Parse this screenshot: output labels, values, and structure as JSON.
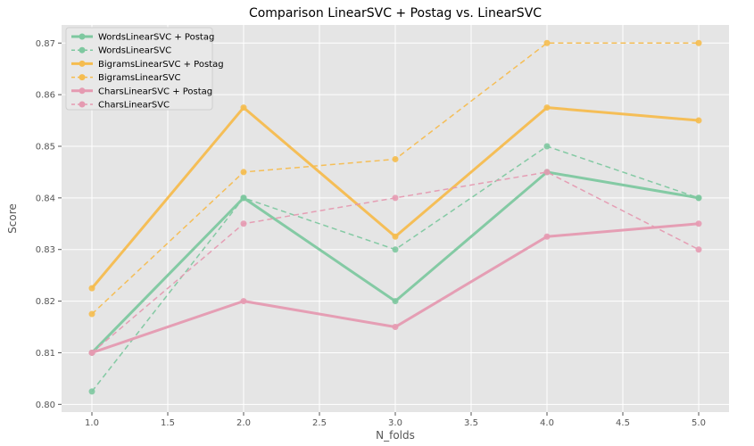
{
  "chart_data": {
    "type": "line",
    "title": "Comparison LinearSVC + Postag vs. LinearSVC",
    "xlabel": "N_folds",
    "ylabel": "Score",
    "x": [
      1.0,
      2.0,
      3.0,
      4.0,
      5.0
    ],
    "xlim": [
      0.8,
      5.2
    ],
    "ylim": [
      0.7985,
      0.8735
    ],
    "xticks": [
      "1.0",
      "1.5",
      "2.0",
      "2.5",
      "3.0",
      "3.5",
      "4.0",
      "4.5",
      "5.0"
    ],
    "yticks": [
      "0.80",
      "0.81",
      "0.82",
      "0.83",
      "0.84",
      "0.85",
      "0.86",
      "0.87"
    ],
    "grid": true,
    "legend_position": "top-left",
    "series": [
      {
        "name": "WordsLinearSVC + Postag",
        "values": [
          0.81,
          0.84,
          0.82,
          0.845,
          0.84
        ],
        "color": "#7ec8a0",
        "style": "solid"
      },
      {
        "name": "WordsLinearSVC",
        "values": [
          0.8025,
          0.84,
          0.83,
          0.85,
          0.84
        ],
        "color": "#7ec8a0",
        "style": "dashed"
      },
      {
        "name": "BigramsLinearSVC + Postag",
        "values": [
          0.8225,
          0.8575,
          0.8325,
          0.8575,
          0.855
        ],
        "color": "#f5bc4f",
        "style": "solid"
      },
      {
        "name": "BigramsLinearSVC",
        "values": [
          0.8175,
          0.845,
          0.8475,
          0.87,
          0.87
        ],
        "color": "#f5bc4f",
        "style": "dashed"
      },
      {
        "name": "CharsLinearSVC + Postag",
        "values": [
          0.81,
          0.82,
          0.815,
          0.8325,
          0.835
        ],
        "color": "#e59ab1",
        "style": "solid"
      },
      {
        "name": "CharsLinearSVC",
        "values": [
          0.81,
          0.835,
          0.84,
          0.845,
          0.83
        ],
        "color": "#e59ab1",
        "style": "dashed"
      }
    ]
  }
}
